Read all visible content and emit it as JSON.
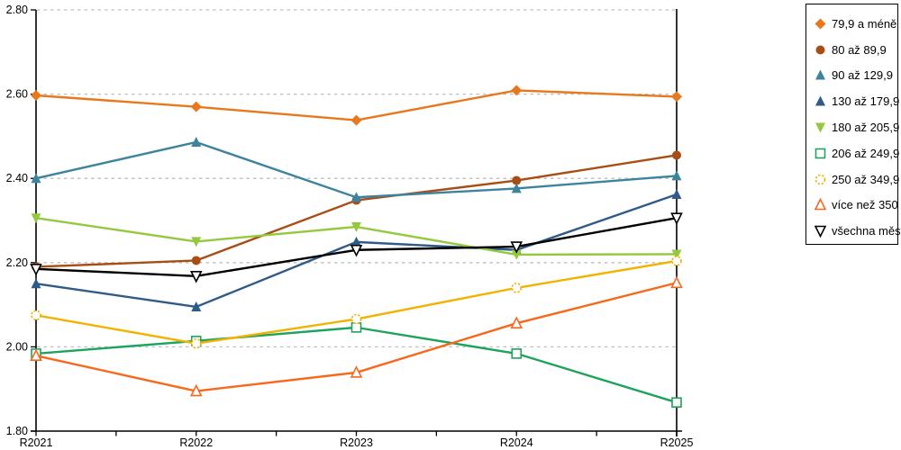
{
  "chart_data": {
    "type": "line",
    "title": "",
    "xlabel": "",
    "ylabel": "",
    "categories": [
      "R2021",
      "R2022",
      "R2023",
      "R2024",
      "R2025"
    ],
    "ylim": [
      1.8,
      2.8
    ],
    "y_tick_labels": [
      "1.80",
      "2.00",
      "2.20",
      "2.40",
      "2.60",
      "2.80"
    ],
    "grid": "horizontal-dashed",
    "gridline_color": "#BFBFBF",
    "axis_color": "#000000",
    "legend_position": "right",
    "series": [
      {
        "name": "79,9 a méně",
        "color": "#E8781E",
        "marker": "diamond",
        "values": [
          2.597,
          2.57,
          2.538,
          2.609,
          2.594
        ]
      },
      {
        "name": "80 až 89,9",
        "color": "#A84E15",
        "marker": "circle",
        "values": [
          2.19,
          2.205,
          2.348,
          2.395,
          2.455
        ]
      },
      {
        "name": "90 až 129,9",
        "color": "#3C849E",
        "marker": "triangle-up",
        "values": [
          2.4,
          2.486,
          2.355,
          2.376,
          2.406
        ]
      },
      {
        "name": "130 až 179,9",
        "color": "#2F5B88",
        "marker": "triangle-up",
        "values": [
          2.15,
          2.095,
          2.249,
          2.23,
          2.362
        ]
      },
      {
        "name": "180 až 205,9",
        "color": "#94C83D",
        "marker": "triangle-down",
        "values": [
          2.306,
          2.25,
          2.285,
          2.219,
          2.22
        ]
      },
      {
        "name": "206 až 249,9",
        "color": "#1EA35C",
        "marker": "square-open",
        "values": [
          1.984,
          2.014,
          2.046,
          1.984,
          1.868
        ]
      },
      {
        "name": "250 až 349,9",
        "color": "#F2B200",
        "marker": "circle-open-dashed",
        "values": [
          2.075,
          2.008,
          2.066,
          2.14,
          2.204
        ]
      },
      {
        "name": "více než 350",
        "color": "#F8681C",
        "marker": "triangle-up-open",
        "values": [
          1.979,
          1.895,
          1.939,
          2.056,
          2.152
        ]
      },
      {
        "name": "všechna města",
        "color": "#000000",
        "marker": "triangle-down-open",
        "values": [
          2.185,
          2.168,
          2.23,
          2.238,
          2.306
        ]
      }
    ]
  }
}
